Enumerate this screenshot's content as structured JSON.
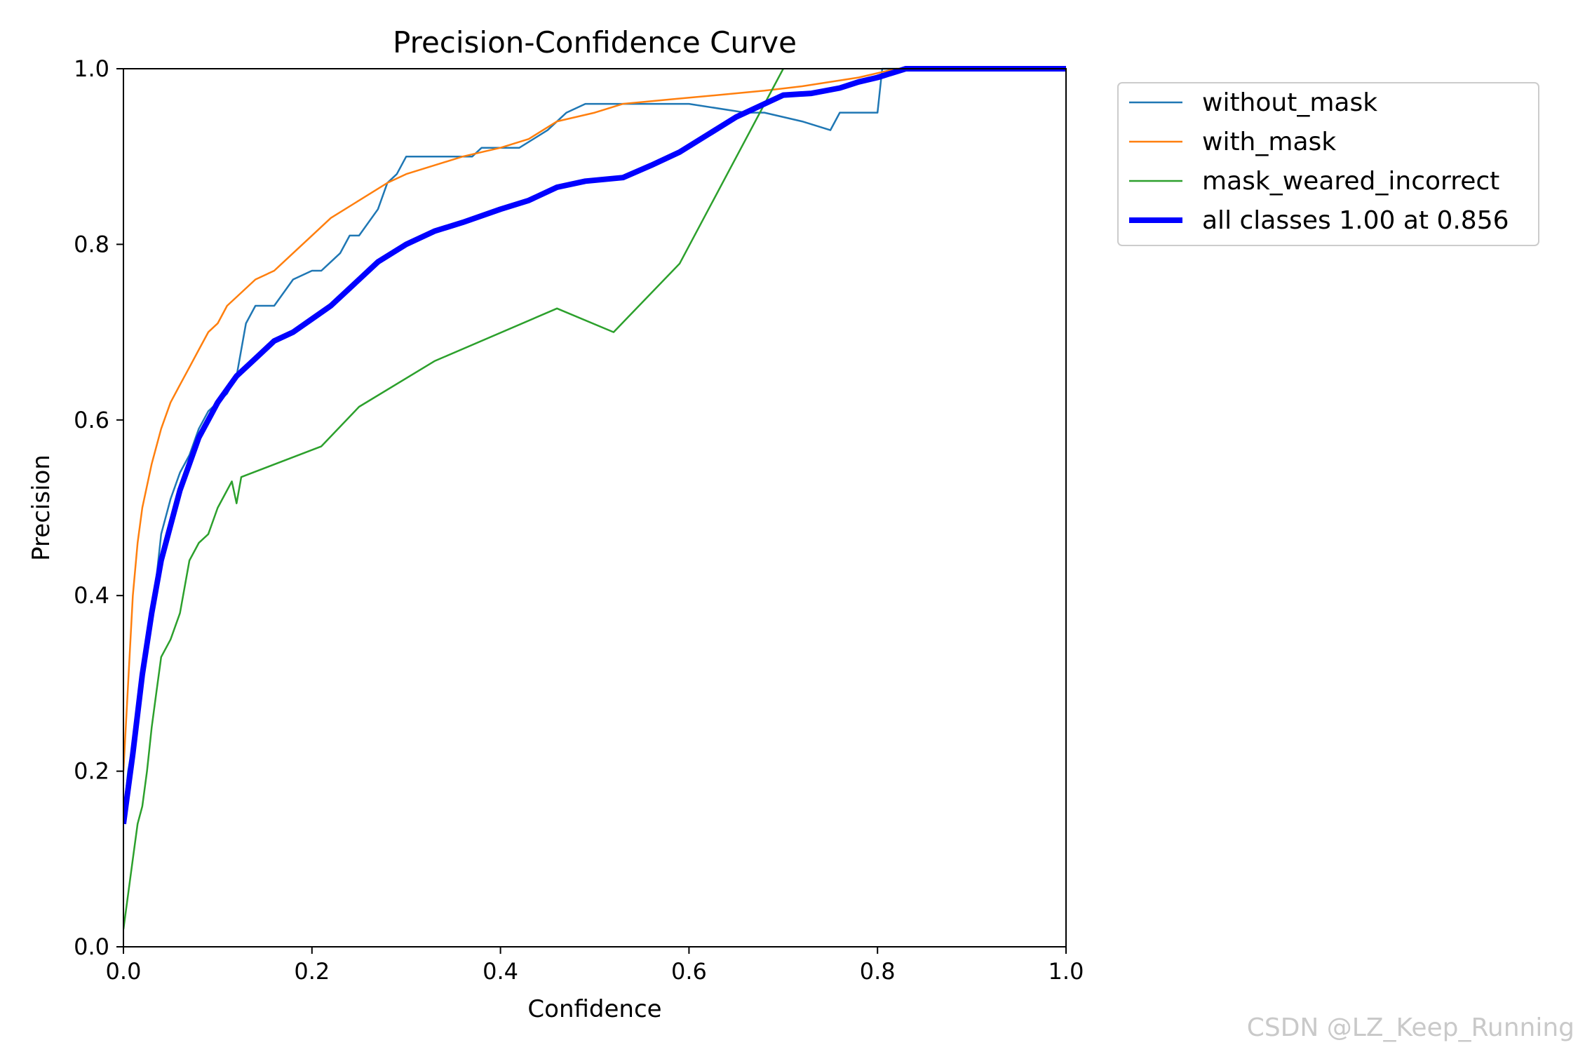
{
  "chart_data": {
    "type": "line",
    "title": "Precision-Confidence Curve",
    "xlabel": "Confidence",
    "ylabel": "Precision",
    "xlim": [
      0,
      1
    ],
    "ylim": [
      0,
      1
    ],
    "grid": false,
    "legend_position": "outside-top-right",
    "x_ticks": [
      "0.0",
      "0.2",
      "0.4",
      "0.6",
      "0.8",
      "1.0"
    ],
    "y_ticks": [
      "0.0",
      "0.2",
      "0.4",
      "0.6",
      "0.8",
      "1.0"
    ],
    "series": [
      {
        "name": "without_mask",
        "color": "#1f77b4",
        "width": "thin",
        "points": [
          [
            0.0,
            0.15
          ],
          [
            0.005,
            0.2
          ],
          [
            0.01,
            0.23
          ],
          [
            0.015,
            0.28
          ],
          [
            0.02,
            0.32
          ],
          [
            0.025,
            0.35
          ],
          [
            0.03,
            0.38
          ],
          [
            0.035,
            0.42
          ],
          [
            0.04,
            0.47
          ],
          [
            0.05,
            0.51
          ],
          [
            0.06,
            0.54
          ],
          [
            0.07,
            0.56
          ],
          [
            0.08,
            0.59
          ],
          [
            0.09,
            0.61
          ],
          [
            0.1,
            0.62
          ],
          [
            0.11,
            0.63
          ],
          [
            0.12,
            0.65
          ],
          [
            0.13,
            0.71
          ],
          [
            0.14,
            0.73
          ],
          [
            0.16,
            0.73
          ],
          [
            0.18,
            0.76
          ],
          [
            0.2,
            0.77
          ],
          [
            0.21,
            0.77
          ],
          [
            0.22,
            0.78
          ],
          [
            0.23,
            0.79
          ],
          [
            0.24,
            0.81
          ],
          [
            0.25,
            0.81
          ],
          [
            0.27,
            0.84
          ],
          [
            0.28,
            0.87
          ],
          [
            0.29,
            0.88
          ],
          [
            0.3,
            0.9
          ],
          [
            0.33,
            0.9
          ],
          [
            0.37,
            0.9
          ],
          [
            0.38,
            0.91
          ],
          [
            0.42,
            0.91
          ],
          [
            0.45,
            0.93
          ],
          [
            0.47,
            0.95
          ],
          [
            0.49,
            0.96
          ],
          [
            0.52,
            0.96
          ],
          [
            0.56,
            0.96
          ],
          [
            0.6,
            0.96
          ],
          [
            0.66,
            0.95
          ],
          [
            0.68,
            0.95
          ],
          [
            0.72,
            0.94
          ],
          [
            0.75,
            0.93
          ],
          [
            0.76,
            0.95
          ],
          [
            0.78,
            0.95
          ],
          [
            0.8,
            0.95
          ],
          [
            0.805,
            1.0
          ],
          [
            1.0,
            1.0
          ]
        ]
      },
      {
        "name": "with_mask",
        "color": "#ff7f0e",
        "width": "thin",
        "points": [
          [
            0.0,
            0.2
          ],
          [
            0.005,
            0.3
          ],
          [
            0.01,
            0.4
          ],
          [
            0.015,
            0.46
          ],
          [
            0.02,
            0.5
          ],
          [
            0.03,
            0.55
          ],
          [
            0.04,
            0.59
          ],
          [
            0.05,
            0.62
          ],
          [
            0.06,
            0.64
          ],
          [
            0.07,
            0.66
          ],
          [
            0.08,
            0.68
          ],
          [
            0.09,
            0.7
          ],
          [
            0.1,
            0.71
          ],
          [
            0.11,
            0.73
          ],
          [
            0.12,
            0.74
          ],
          [
            0.14,
            0.76
          ],
          [
            0.16,
            0.77
          ],
          [
            0.18,
            0.79
          ],
          [
            0.2,
            0.81
          ],
          [
            0.22,
            0.83
          ],
          [
            0.25,
            0.85
          ],
          [
            0.28,
            0.87
          ],
          [
            0.3,
            0.88
          ],
          [
            0.33,
            0.89
          ],
          [
            0.36,
            0.9
          ],
          [
            0.4,
            0.91
          ],
          [
            0.43,
            0.92
          ],
          [
            0.46,
            0.94
          ],
          [
            0.5,
            0.95
          ],
          [
            0.53,
            0.96
          ],
          [
            0.58,
            0.965
          ],
          [
            0.63,
            0.97
          ],
          [
            0.68,
            0.975
          ],
          [
            0.72,
            0.98
          ],
          [
            0.78,
            0.99
          ],
          [
            0.82,
            1.0
          ],
          [
            1.0,
            1.0
          ]
        ]
      },
      {
        "name": "mask_weared_incorrect",
        "color": "#2ca02c",
        "width": "thin",
        "points": [
          [
            0.0,
            0.02
          ],
          [
            0.005,
            0.06
          ],
          [
            0.01,
            0.1
          ],
          [
            0.015,
            0.14
          ],
          [
            0.02,
            0.16
          ],
          [
            0.025,
            0.2
          ],
          [
            0.03,
            0.25
          ],
          [
            0.035,
            0.29
          ],
          [
            0.04,
            0.33
          ],
          [
            0.05,
            0.35
          ],
          [
            0.06,
            0.38
          ],
          [
            0.07,
            0.44
          ],
          [
            0.08,
            0.46
          ],
          [
            0.09,
            0.47
          ],
          [
            0.1,
            0.5
          ],
          [
            0.115,
            0.53
          ],
          [
            0.12,
            0.505
          ],
          [
            0.125,
            0.535
          ],
          [
            0.21,
            0.57
          ],
          [
            0.25,
            0.615
          ],
          [
            0.33,
            0.667
          ],
          [
            0.46,
            0.727
          ],
          [
            0.52,
            0.7
          ],
          [
            0.59,
            0.778
          ],
          [
            0.7,
            1.0
          ]
        ]
      },
      {
        "name": "all classes 1.00 at 0.856",
        "color": "#0000ff",
        "width": "thick",
        "points": [
          [
            0.0,
            0.14
          ],
          [
            0.01,
            0.22
          ],
          [
            0.02,
            0.31
          ],
          [
            0.03,
            0.38
          ],
          [
            0.04,
            0.44
          ],
          [
            0.05,
            0.48
          ],
          [
            0.06,
            0.52
          ],
          [
            0.07,
            0.55
          ],
          [
            0.08,
            0.58
          ],
          [
            0.09,
            0.6
          ],
          [
            0.1,
            0.62
          ],
          [
            0.12,
            0.65
          ],
          [
            0.14,
            0.67
          ],
          [
            0.16,
            0.69
          ],
          [
            0.18,
            0.7
          ],
          [
            0.2,
            0.715
          ],
          [
            0.22,
            0.73
          ],
          [
            0.25,
            0.76
          ],
          [
            0.27,
            0.78
          ],
          [
            0.3,
            0.8
          ],
          [
            0.33,
            0.815
          ],
          [
            0.36,
            0.825
          ],
          [
            0.4,
            0.84
          ],
          [
            0.43,
            0.85
          ],
          [
            0.46,
            0.865
          ],
          [
            0.49,
            0.872
          ],
          [
            0.53,
            0.876
          ],
          [
            0.56,
            0.89
          ],
          [
            0.59,
            0.905
          ],
          [
            0.62,
            0.925
          ],
          [
            0.65,
            0.945
          ],
          [
            0.68,
            0.96
          ],
          [
            0.7,
            0.97
          ],
          [
            0.73,
            0.972
          ],
          [
            0.76,
            0.978
          ],
          [
            0.78,
            0.985
          ],
          [
            0.8,
            0.99
          ],
          [
            0.83,
            1.0
          ],
          [
            1.0,
            1.0
          ]
        ]
      }
    ],
    "watermark": "CSDN @LZ_Keep_Running"
  }
}
